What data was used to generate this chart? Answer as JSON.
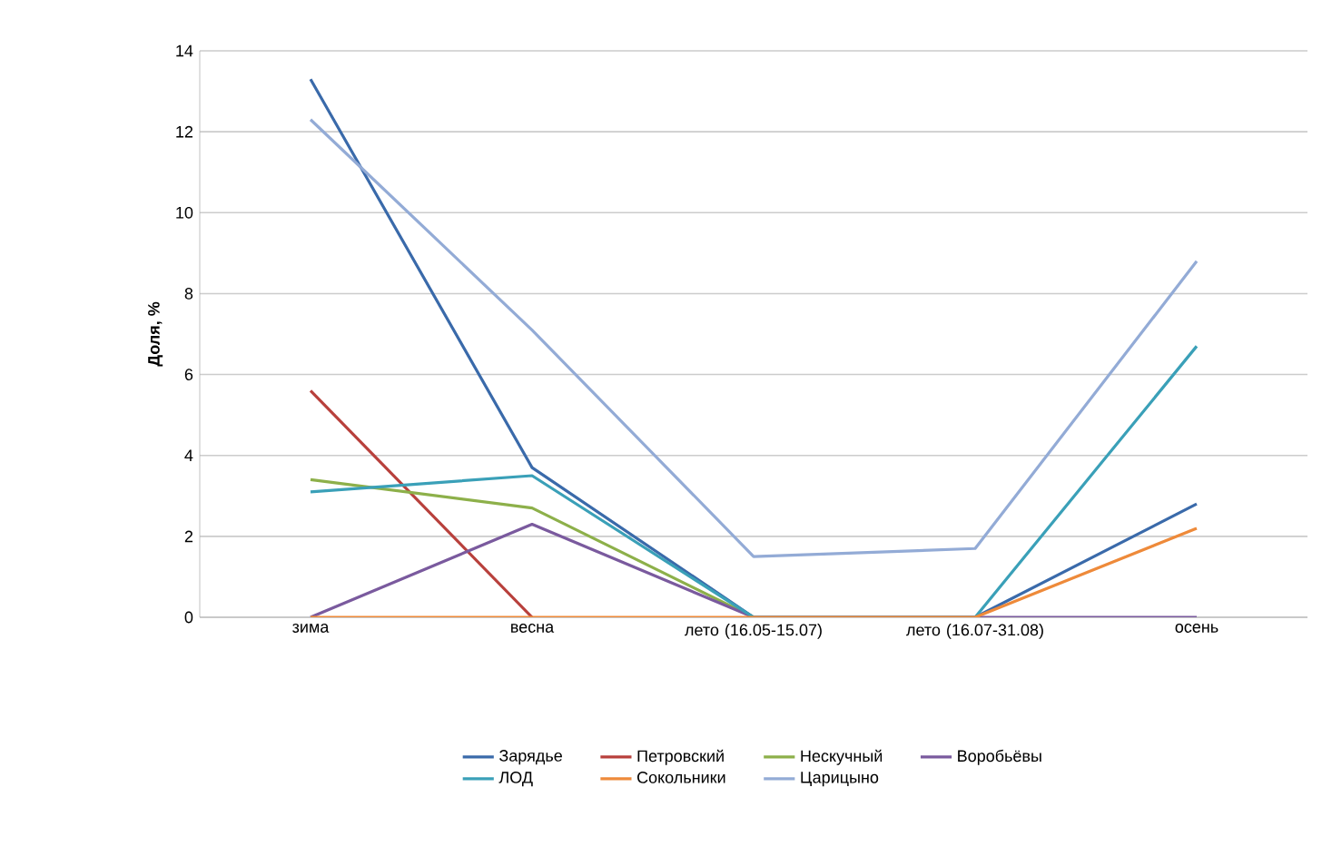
{
  "chart_data": {
    "type": "line",
    "ylabel": "Доля, %",
    "categories": [
      "зима",
      "весна",
      "лето (16.05-15.07)",
      "лето (16.07-31.08)",
      "осень"
    ],
    "series": [
      {
        "name": "Зарядье",
        "color": "#3a6aaa",
        "values": [
          13.3,
          3.7,
          0,
          0,
          2.8
        ]
      },
      {
        "name": "Петровский",
        "color": "#b8403c",
        "values": [
          5.6,
          0,
          null,
          null,
          null
        ]
      },
      {
        "name": "Нескучный",
        "color": "#8db04a",
        "values": [
          3.4,
          2.7,
          0,
          null,
          null
        ]
      },
      {
        "name": "Воробьёвы",
        "color": "#7a5a9e",
        "values": [
          0,
          2.3,
          0,
          0,
          0
        ]
      },
      {
        "name": "ЛОД",
        "color": "#3aa0b8",
        "values": [
          3.1,
          3.5,
          0,
          0,
          6.7
        ]
      },
      {
        "name": "Сокольники",
        "color": "#ee8a3a",
        "values": [
          0,
          0,
          0,
          0,
          2.2
        ]
      },
      {
        "name": "Царицыно",
        "color": "#93abd6",
        "values": [
          12.3,
          7.1,
          1.5,
          1.7,
          8.8
        ]
      }
    ],
    "ylim": [
      0,
      14
    ],
    "yticks": [
      0,
      2,
      4,
      6,
      8,
      10,
      12,
      14
    ],
    "grid": "y",
    "legend": "bottom",
    "marker": "none",
    "line_style": "solid"
  }
}
